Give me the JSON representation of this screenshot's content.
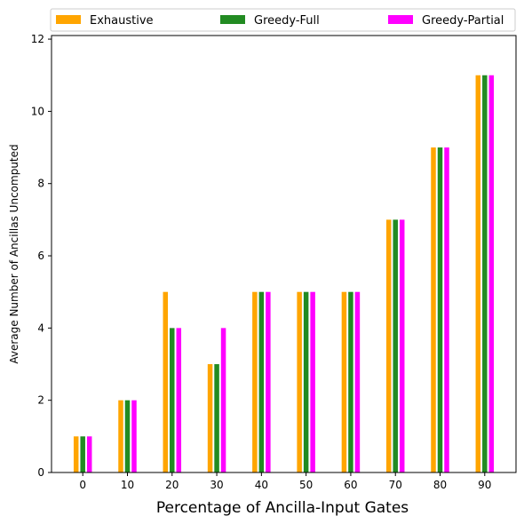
{
  "chart_data": {
    "type": "bar",
    "categories": [
      "0",
      "10",
      "20",
      "30",
      "40",
      "50",
      "60",
      "70",
      "80",
      "90"
    ],
    "series": [
      {
        "name": "Exhaustive",
        "color": "#ffa500",
        "values": [
          1,
          2,
          5,
          3,
          5,
          5,
          5,
          7,
          9,
          11
        ]
      },
      {
        "name": "Greedy-Full",
        "color": "#228b22",
        "values": [
          1,
          2,
          4,
          3,
          5,
          5,
          5,
          7,
          9,
          11
        ]
      },
      {
        "name": "Greedy-Partial",
        "color": "#ff00ff",
        "values": [
          1,
          2,
          4,
          4,
          5,
          5,
          5,
          7,
          9,
          11
        ]
      }
    ],
    "xlabel": "Percentage of Ancilla-Input Gates",
    "ylabel": "Average Number of Ancillas Uncomputed",
    "ylim": [
      0,
      12.1
    ],
    "yticks": [
      "0",
      "2",
      "4",
      "6",
      "8",
      "10",
      "12"
    ],
    "grid": false,
    "legend_position": "top"
  }
}
